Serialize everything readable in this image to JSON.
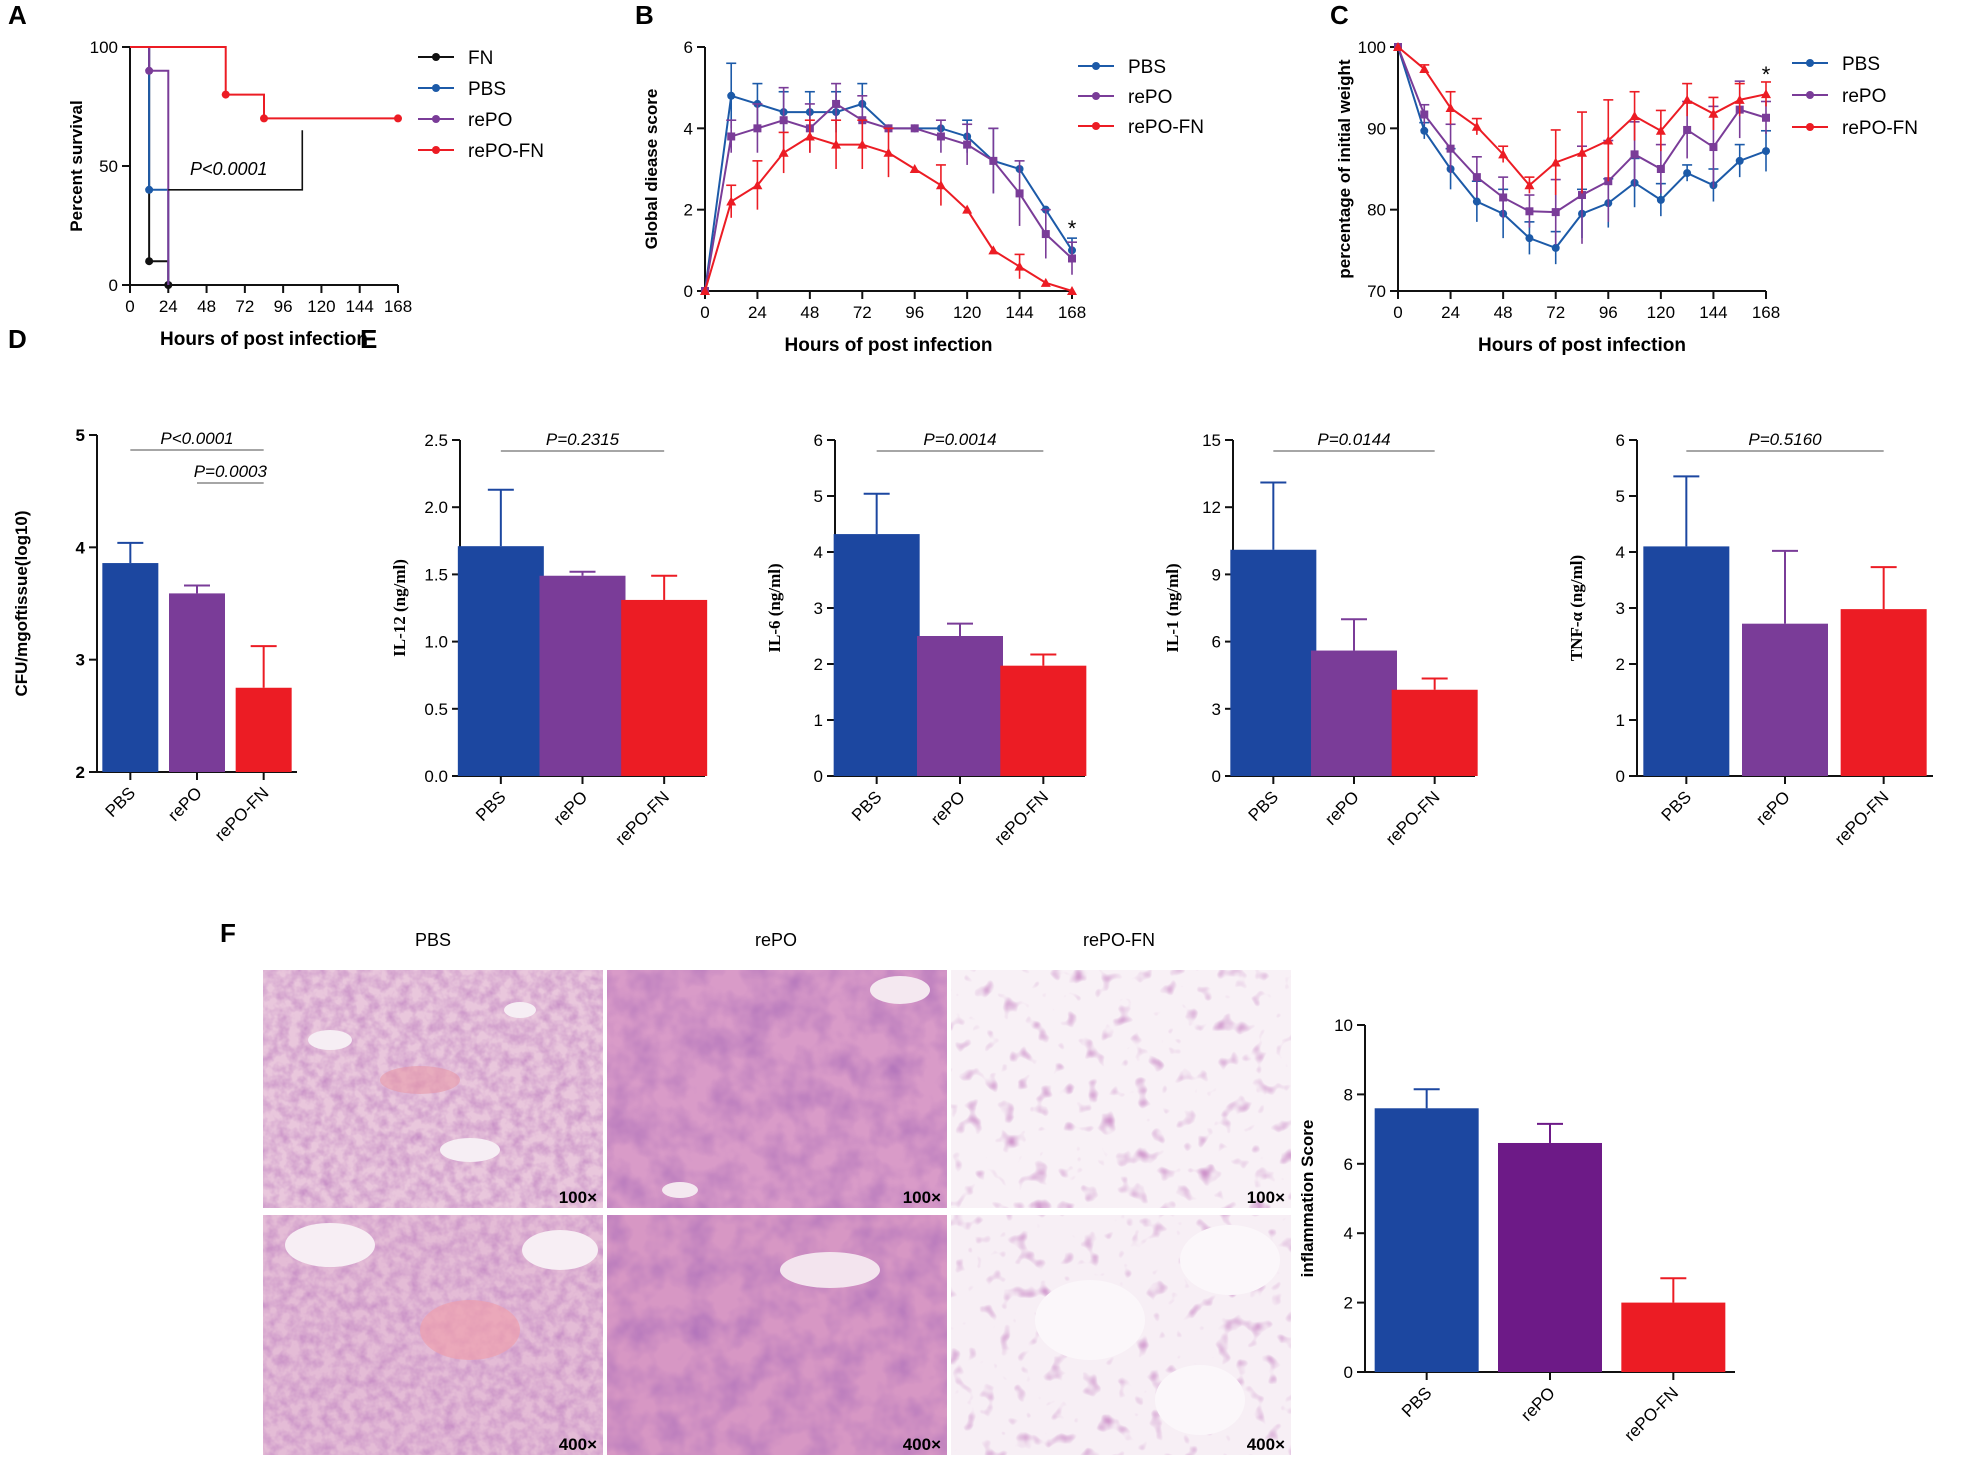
{
  "colors": {
    "pbs": "#1c47a0",
    "repo": "#7a3c98",
    "repofn": "#ec1c24",
    "fn": "#111111",
    "axis": "#111111"
  },
  "panels": {
    "A": {
      "letter": "A"
    },
    "B": {
      "letter": "B"
    },
    "C": {
      "letter": "C"
    },
    "D": {
      "letter": "D"
    },
    "E": {
      "letter": "E"
    },
    "F": {
      "letter": "F"
    }
  },
  "chart_data": [
    {
      "id": "A",
      "type": "line",
      "title": "",
      "xlabel": "Hours of post infection",
      "ylabel": "Percent survival",
      "xlim": [
        0,
        168
      ],
      "ylim": [
        0,
        100
      ],
      "xticks": [
        "0",
        "24",
        "48",
        "72",
        "96",
        "120",
        "144",
        "168"
      ],
      "yticks": [
        "0",
        "50",
        "100"
      ],
      "series": [
        {
          "name": "FN",
          "x": [
            0,
            12,
            12,
            24,
            24
          ],
          "y": [
            100,
            100,
            10,
            10,
            0
          ],
          "markers": [
            [
              12,
              10
            ],
            [
              24,
              0
            ]
          ],
          "color": "#111111"
        },
        {
          "name": "PBS",
          "x": [
            0,
            12,
            12,
            24,
            24
          ],
          "y": [
            100,
            100,
            40,
            40,
            0
          ],
          "markers": [
            [
              12,
              40
            ]
          ],
          "color": "#1c5aa8"
        },
        {
          "name": "rePO",
          "x": [
            0,
            12,
            12,
            24,
            24
          ],
          "y": [
            100,
            100,
            90,
            90,
            0
          ],
          "markers": [
            [
              12,
              90
            ]
          ],
          "color": "#7a3c98"
        },
        {
          "name": "rePO-FN",
          "x": [
            0,
            60,
            60,
            84,
            84,
            168
          ],
          "y": [
            100,
            100,
            80,
            80,
            70,
            70
          ],
          "markers": [
            [
              60,
              80
            ],
            [
              84,
              70
            ],
            [
              168,
              70
            ]
          ],
          "color": "#ec1c24"
        }
      ],
      "annotation": "P<0.0001"
    },
    {
      "id": "B",
      "type": "line",
      "title": "",
      "xlabel": "Hours of post infection",
      "ylabel": "Global diease score",
      "xlim": [
        0,
        168
      ],
      "ylim": [
        0,
        6
      ],
      "xticks": [
        "0",
        "24",
        "48",
        "72",
        "96",
        "120",
        "144",
        "168"
      ],
      "yticks": [
        "0",
        "2",
        "4",
        "6"
      ],
      "x": [
        0,
        12,
        24,
        36,
        48,
        60,
        72,
        84,
        96,
        108,
        120,
        132,
        144,
        156,
        168
      ],
      "series": [
        {
          "name": "PBS",
          "values": [
            0,
            4.8,
            4.6,
            4.4,
            4.4,
            4.4,
            4.6,
            4.0,
            4.0,
            4.0,
            3.8,
            3.2,
            3.0,
            2.0,
            1.0
          ],
          "err": [
            0,
            0.8,
            0.5,
            0.5,
            0.5,
            0.5,
            0.5,
            0,
            0,
            0,
            0.4,
            0.8,
            0,
            0,
            0.3
          ],
          "color": "#1c5aa8"
        },
        {
          "name": "rePO",
          "values": [
            0,
            3.8,
            4.0,
            4.2,
            4.0,
            4.6,
            4.2,
            4.0,
            4.0,
            3.8,
            3.6,
            3.2,
            2.4,
            1.4,
            0.8
          ],
          "err": [
            0,
            0.4,
            0.6,
            0.8,
            0.6,
            0.5,
            0.6,
            0,
            0,
            0.4,
            0.5,
            0.8,
            0.8,
            0.6,
            0.4
          ],
          "color": "#7a3c98"
        },
        {
          "name": "rePO-FN",
          "values": [
            0,
            2.2,
            2.6,
            3.4,
            3.8,
            3.6,
            3.6,
            3.4,
            3.0,
            2.6,
            2.0,
            1.0,
            0.6,
            0.2,
            0
          ],
          "err": [
            0,
            0.4,
            0.6,
            0.5,
            0.4,
            0.6,
            0.6,
            0.6,
            0,
            0.5,
            0,
            0,
            0.3,
            0,
            0
          ],
          "color": "#ec1c24"
        }
      ],
      "annotation": "*"
    },
    {
      "id": "C",
      "type": "line",
      "title": "",
      "xlabel": "Hours of post infection",
      "ylabel": "percentage of initial weight",
      "xlim": [
        0,
        168
      ],
      "ylim": [
        70,
        100
      ],
      "xticks": [
        "0",
        "24",
        "48",
        "72",
        "96",
        "120",
        "144",
        "168"
      ],
      "yticks": [
        "70",
        "80",
        "90",
        "100"
      ],
      "x": [
        0,
        12,
        24,
        36,
        48,
        60,
        72,
        84,
        96,
        108,
        120,
        132,
        144,
        156,
        168
      ],
      "series": [
        {
          "name": "PBS",
          "values": [
            100,
            89.7,
            85.0,
            81.0,
            79.5,
            76.5,
            75.3,
            79.5,
            80.8,
            83.3,
            81.2,
            84.5,
            83.0,
            86.0,
            87.2
          ],
          "err": [
            0,
            1.0,
            2.5,
            2.5,
            3.0,
            2.0,
            2.0,
            3.0,
            3.0,
            3.0,
            2.0,
            1.0,
            2.0,
            2.0,
            2.5
          ],
          "color": "#1c5aa8"
        },
        {
          "name": "rePO",
          "values": [
            100,
            91.7,
            87.5,
            84.0,
            81.5,
            79.8,
            79.7,
            81.8,
            83.5,
            86.8,
            85.0,
            89.8,
            87.7,
            92.3,
            91.3
          ],
          "err": [
            0,
            1.2,
            3.0,
            2.5,
            2.5,
            2.0,
            4.0,
            6.0,
            5.0,
            4.0,
            3.0,
            3.5,
            5.0,
            3.5,
            2.0
          ],
          "color": "#7a3c98"
        },
        {
          "name": "rePO-FN",
          "values": [
            100,
            97.3,
            92.5,
            90.2,
            86.8,
            83.0,
            85.8,
            87.0,
            88.5,
            91.5,
            89.7,
            93.5,
            91.8,
            93.5,
            94.2
          ],
          "err": [
            0,
            0.5,
            2.0,
            1.0,
            1.0,
            1.0,
            4.0,
            5.0,
            5.0,
            3.0,
            2.5,
            2.0,
            2.0,
            2.0,
            1.5
          ],
          "color": "#ec1c24"
        }
      ],
      "annotation": "*"
    },
    {
      "id": "D",
      "type": "bar",
      "title": "",
      "ylabel": "CFU/mgoftissue(log10)",
      "ylim": [
        2,
        5
      ],
      "yticks": [
        "2",
        "3",
        "4",
        "5"
      ],
      "categories": [
        "PBS",
        "rePO",
        "rePO-FN"
      ],
      "values": [
        3.86,
        3.59,
        2.75
      ],
      "err": [
        0.18,
        0.07,
        0.37
      ],
      "annotations": [
        "P<0.0001",
        "P=0.0003"
      ]
    },
    {
      "id": "E1",
      "type": "bar",
      "ylabel": "IL-12 (ng/ml)",
      "ylim": [
        0,
        2.5
      ],
      "yticks": [
        "0.0",
        "0.5",
        "1.0",
        "1.5",
        "2.0",
        "2.5"
      ],
      "categories": [
        "PBS",
        "rePO",
        "rePO-FN"
      ],
      "values": [
        1.71,
        1.49,
        1.31
      ],
      "err": [
        0.42,
        0.03,
        0.18
      ],
      "annotation": "P=0.2315"
    },
    {
      "id": "E2",
      "type": "bar",
      "ylabel": "IL-6 (ng/ml)",
      "ylim": [
        0,
        6
      ],
      "yticks": [
        "0",
        "1",
        "2",
        "3",
        "4",
        "5",
        "6"
      ],
      "categories": [
        "PBS",
        "rePO",
        "rePO-FN"
      ],
      "values": [
        4.32,
        2.5,
        1.97
      ],
      "err": [
        0.72,
        0.22,
        0.2
      ],
      "annotation": "P=0.0014"
    },
    {
      "id": "E3",
      "type": "bar",
      "ylabel": "IL-1 (ng/ml)",
      "ylim": [
        0,
        15
      ],
      "yticks": [
        "0",
        "3",
        "6",
        "9",
        "12",
        "15"
      ],
      "categories": [
        "PBS",
        "rePO",
        "rePO-FN"
      ],
      "values": [
        10.1,
        5.6,
        3.85
      ],
      "err": [
        3.0,
        1.4,
        0.5
      ],
      "annotation": "P=0.0144"
    },
    {
      "id": "E4",
      "type": "bar",
      "ylabel": "TNF-α (ng/ml)",
      "ylim": [
        0,
        6
      ],
      "yticks": [
        "0",
        "1",
        "2",
        "3",
        "4",
        "5",
        "6"
      ],
      "categories": [
        "PBS",
        "rePO",
        "rePO-FN"
      ],
      "values": [
        4.1,
        2.72,
        2.98
      ],
      "err": [
        1.25,
        1.3,
        0.75
      ],
      "annotation": "P=0.5160"
    },
    {
      "id": "F",
      "type": "bar",
      "ylabel": "inflammation Score",
      "ylim": [
        0,
        10
      ],
      "yticks": [
        "0",
        "2",
        "4",
        "6",
        "8",
        "10"
      ],
      "categories": [
        "PBS",
        "rePO",
        "rePO-FN"
      ],
      "values": [
        7.6,
        6.6,
        2.0
      ],
      "err": [
        0.55,
        0.55,
        0.7
      ]
    }
  ],
  "histology": {
    "columns": [
      "PBS",
      "rePO",
      "rePO-FN"
    ],
    "magnifications": [
      "100×",
      "400×"
    ]
  }
}
